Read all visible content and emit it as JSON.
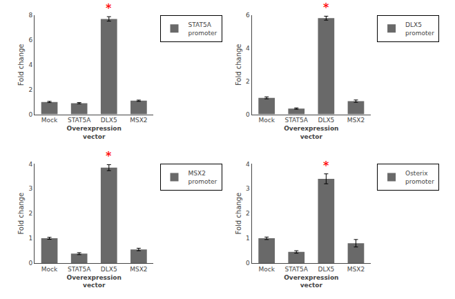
{
  "chart_data": [
    {
      "type": "bar",
      "categories": [
        "Mock",
        "STAT5A",
        "DLX5",
        "MSX2"
      ],
      "series": [
        {
          "name": "STAT5A\npromoter",
          "color": "#696969",
          "values": [
            1.0,
            0.9,
            7.7,
            1.1
          ],
          "errors": [
            0.05,
            0.05,
            0.18,
            0.05
          ]
        }
      ],
      "xlabel": "Overexpression\nvector",
      "ylabel": "Fold change",
      "ylim": [
        0,
        8
      ],
      "yticks": [
        0,
        2,
        4,
        6,
        8
      ],
      "annotations": [
        {
          "text": "*",
          "category": "DLX5",
          "color": "red"
        }
      ],
      "legend": "right",
      "grid": false
    },
    {
      "type": "bar",
      "categories": [
        "Mock",
        "STAT5A",
        "DLX5",
        "MSX2"
      ],
      "series": [
        {
          "name": "DLX5\npromoter",
          "color": "#696969",
          "values": [
            1.0,
            0.35,
            5.82,
            0.8
          ],
          "errors": [
            0.06,
            0.04,
            0.12,
            0.07
          ]
        }
      ],
      "xlabel": "Overexpression\nvector",
      "ylabel": "Fold change",
      "ylim": [
        0,
        6
      ],
      "yticks": [
        0,
        2,
        4,
        6
      ],
      "annotations": [
        {
          "text": "*",
          "category": "DLX5",
          "color": "red"
        }
      ],
      "legend": "right",
      "grid": false
    },
    {
      "type": "bar",
      "categories": [
        "Mock",
        "STAT5A",
        "DLX5",
        "MSX2"
      ],
      "series": [
        {
          "name": "MSX2\npromoter",
          "color": "#696969",
          "values": [
            1.0,
            0.38,
            3.85,
            0.55
          ],
          "errors": [
            0.04,
            0.04,
            0.12,
            0.05
          ]
        }
      ],
      "xlabel": "Overexpression\nvector",
      "ylabel": "Fold change",
      "ylim": [
        0,
        4
      ],
      "yticks": [
        0,
        1,
        2,
        3,
        4
      ],
      "annotations": [
        {
          "text": "*",
          "category": "DLX5",
          "color": "red"
        }
      ],
      "legend": "right",
      "grid": false
    },
    {
      "type": "bar",
      "categories": [
        "Mock",
        "STAT5A",
        "DLX5",
        "MSX2"
      ],
      "series": [
        {
          "name": "Osterix\npromoter",
          "color": "#696969",
          "values": [
            1.0,
            0.45,
            3.4,
            0.8
          ],
          "errors": [
            0.05,
            0.05,
            0.2,
            0.15
          ]
        }
      ],
      "xlabel": "Overexpression\nvector",
      "ylabel": "Fold change",
      "ylim": [
        0,
        4
      ],
      "yticks": [
        0,
        1,
        2,
        3,
        4
      ],
      "annotations": [
        {
          "text": "*",
          "category": "DLX5",
          "color": "red"
        }
      ],
      "legend": "right",
      "grid": false
    }
  ]
}
